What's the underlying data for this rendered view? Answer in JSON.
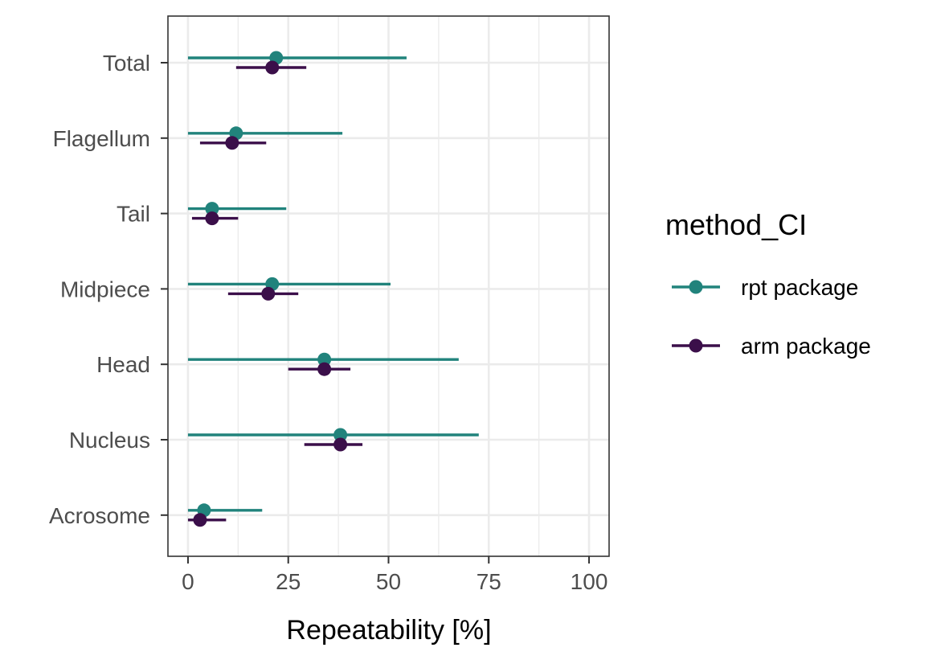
{
  "chart_data": {
    "type": "point-range",
    "orientation": "horizontal",
    "title": "",
    "xlabel": "Repeatability [%]",
    "ylabel": "",
    "xlim": [
      -5,
      105
    ],
    "xticks": [
      0,
      25,
      50,
      75,
      100
    ],
    "categories": [
      "Total",
      "Flagellum",
      "Tail",
      "Midpiece",
      "Head",
      "Nucleus",
      "Acrosome"
    ],
    "grid": true,
    "legend": {
      "title": "method_CI",
      "position": "right"
    },
    "series": [
      {
        "name": "rpt package",
        "color": "#21837c",
        "points": [
          {
            "category": "Total",
            "estimate": 22,
            "lower": 0,
            "upper": 54.5
          },
          {
            "category": "Flagellum",
            "estimate": 12,
            "lower": 0,
            "upper": 38.5
          },
          {
            "category": "Tail",
            "estimate": 6,
            "lower": 0,
            "upper": 24.5
          },
          {
            "category": "Midpiece",
            "estimate": 21,
            "lower": 0,
            "upper": 50.5
          },
          {
            "category": "Head",
            "estimate": 34,
            "lower": 0,
            "upper": 67.5
          },
          {
            "category": "Nucleus",
            "estimate": 38,
            "lower": 0,
            "upper": 72.5
          },
          {
            "category": "Acrosome",
            "estimate": 4,
            "lower": 0,
            "upper": 18.5
          }
        ]
      },
      {
        "name": "arm package",
        "color": "#3b0f4a",
        "points": [
          {
            "category": "Total",
            "estimate": 21,
            "lower": 12,
            "upper": 29.5
          },
          {
            "category": "Flagellum",
            "estimate": 11,
            "lower": 3,
            "upper": 19.5
          },
          {
            "category": "Tail",
            "estimate": 6,
            "lower": 1,
            "upper": 12.5
          },
          {
            "category": "Midpiece",
            "estimate": 20,
            "lower": 10,
            "upper": 27.5
          },
          {
            "category": "Head",
            "estimate": 34,
            "lower": 25,
            "upper": 40.5
          },
          {
            "category": "Nucleus",
            "estimate": 38,
            "lower": 29,
            "upper": 43.5
          },
          {
            "category": "Acrosome",
            "estimate": 3,
            "lower": 0,
            "upper": 9.5
          }
        ]
      }
    ]
  }
}
